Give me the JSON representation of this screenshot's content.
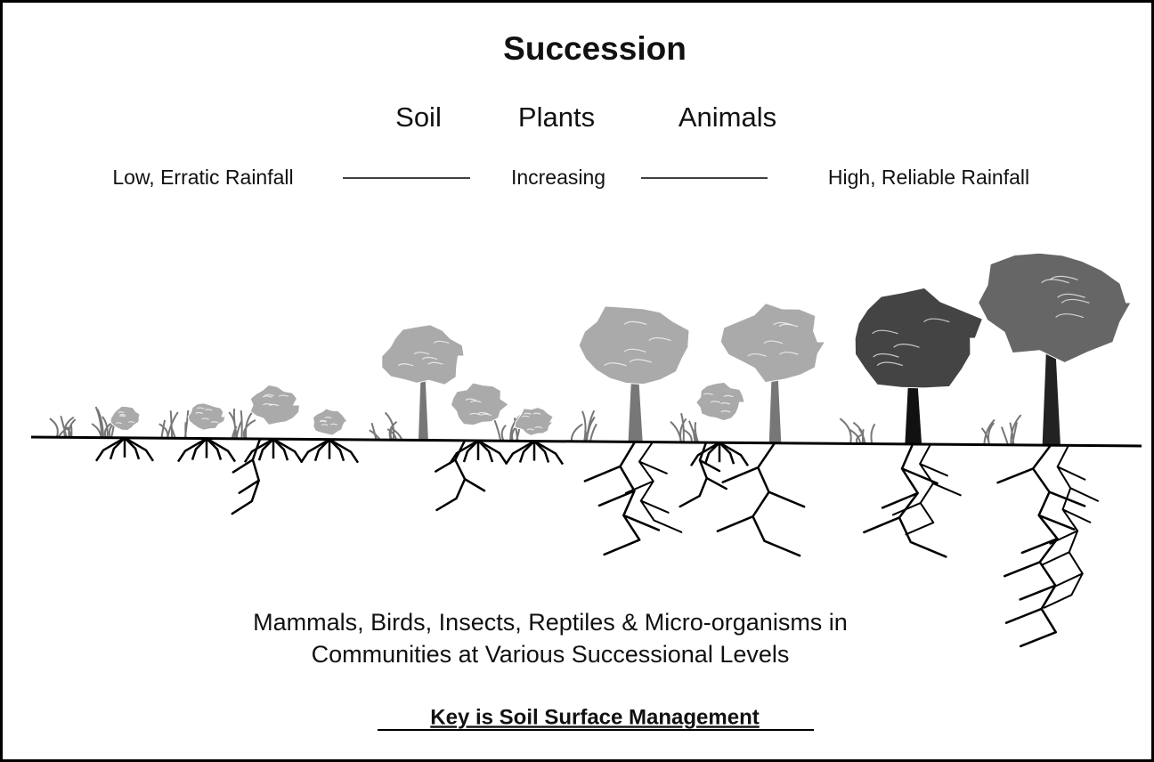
{
  "title": "Succession",
  "factors": [
    "Soil",
    "Plants",
    "Animals"
  ],
  "gradient": {
    "left": "Low, Erratic Rainfall",
    "middle": "Increasing",
    "right": "High, Reliable Rainfall"
  },
  "description": [
    "Mammals, Birds, Insects, Reptiles & Micro-organisms in",
    "Communities at Various Successional Levels"
  ],
  "key": "Key is Soil Surface Management"
}
